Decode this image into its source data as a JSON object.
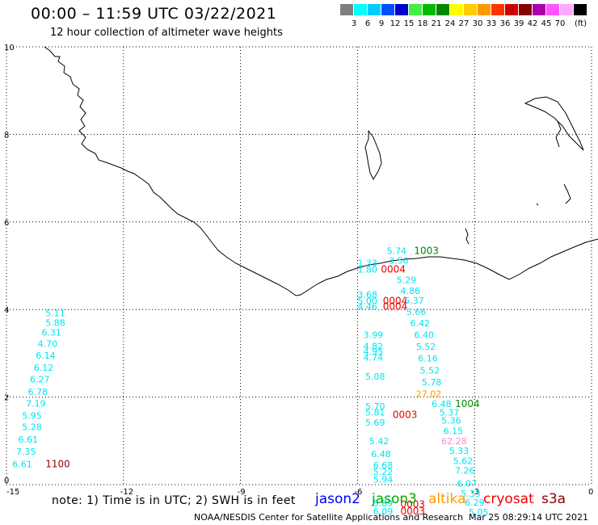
{
  "header": {
    "title": "00:00 – 11:59 UTC 03/22/2021",
    "subtitle": "12 hour collection of altimeter wave heights"
  },
  "legend": {
    "unit": "(ft)",
    "bins": [
      {
        "color": "#7f7f7f",
        "label": ""
      },
      {
        "color": "#00ffff",
        "label": "3"
      },
      {
        "color": "#00ccff",
        "label": "6"
      },
      {
        "color": "#0050ff",
        "label": "9"
      },
      {
        "color": "#0000cc",
        "label": "12"
      },
      {
        "color": "#44ee44",
        "label": "15"
      },
      {
        "color": "#00bb00",
        "label": "18"
      },
      {
        "color": "#008800",
        "label": "21"
      },
      {
        "color": "#ffff00",
        "label": "24"
      },
      {
        "color": "#ffcc00",
        "label": "27"
      },
      {
        "color": "#ff9900",
        "label": "30"
      },
      {
        "color": "#ff3300",
        "label": "33"
      },
      {
        "color": "#cc0000",
        "label": "36"
      },
      {
        "color": "#880000",
        "label": "39"
      },
      {
        "color": "#aa00aa",
        "label": "42"
      },
      {
        "color": "#ff55ff",
        "label": "45"
      },
      {
        "color": "#ffaaff",
        "label": "70"
      },
      {
        "color": "#000000",
        "label": ""
      }
    ]
  },
  "map": {
    "x_ticks": [
      "-15",
      "-12",
      "-9",
      "-6",
      "-3",
      "0"
    ],
    "y_ticks": [
      "0",
      "2",
      "4",
      "6",
      "8",
      "10"
    ],
    "colors": {
      "cyan": "#00e5ee",
      "red": "#ee0000",
      "green": "#008800",
      "orange": "#ff9900",
      "pink": "#ff88dd",
      "darkred": "#990000"
    },
    "observations": [
      {
        "text": "5.11",
        "x": -14.0,
        "y": 3.85,
        "c": "cyan"
      },
      {
        "text": "5.88",
        "x": -14.0,
        "y": 3.63,
        "c": "cyan"
      },
      {
        "text": "6.31",
        "x": -14.1,
        "y": 3.4,
        "c": "cyan"
      },
      {
        "text": "4.70",
        "x": -14.2,
        "y": 3.15,
        "c": "cyan"
      },
      {
        "text": "6.14",
        "x": -14.25,
        "y": 2.88,
        "c": "cyan"
      },
      {
        "text": "6.12",
        "x": -14.3,
        "y": 2.6,
        "c": "cyan"
      },
      {
        "text": "6.27",
        "x": -14.4,
        "y": 2.33,
        "c": "cyan"
      },
      {
        "text": "6.78",
        "x": -14.45,
        "y": 2.05,
        "c": "cyan"
      },
      {
        "text": "7.19",
        "x": -14.5,
        "y": 1.78,
        "c": "cyan"
      },
      {
        "text": "5.95",
        "x": -14.6,
        "y": 1.5,
        "c": "cyan"
      },
      {
        "text": "5.28",
        "x": -14.6,
        "y": 1.25,
        "c": "cyan"
      },
      {
        "text": "6.61",
        "x": -14.7,
        "y": 0.96,
        "c": "cyan"
      },
      {
        "text": "7.35",
        "x": -14.75,
        "y": 0.68,
        "c": "cyan"
      },
      {
        "text": "6.61",
        "x": -14.85,
        "y": 0.4,
        "c": "cyan"
      },
      {
        "text": "1100",
        "x": -14.0,
        "y": 0.4,
        "c": "darkred"
      },
      {
        "text": "5.74",
        "x": -5.25,
        "y": 5.27,
        "c": "cyan"
      },
      {
        "text": "3.56",
        "x": -5.2,
        "y": 5.05,
        "c": "cyan"
      },
      {
        "text": "1003",
        "x": -4.55,
        "y": 5.27,
        "c": "green"
      },
      {
        "text": "1.33",
        "x": -6.0,
        "y": 4.99,
        "c": "cyan"
      },
      {
        "text": "1.80",
        "x": -6.0,
        "y": 4.84,
        "c": "cyan"
      },
      {
        "text": "0004",
        "x": -5.4,
        "y": 4.84,
        "c": "red"
      },
      {
        "text": "5.29",
        "x": -5.0,
        "y": 4.6,
        "c": "cyan"
      },
      {
        "text": "4.86",
        "x": -4.9,
        "y": 4.35,
        "c": "cyan"
      },
      {
        "text": "3.68",
        "x": -6.0,
        "y": 4.27,
        "c": "cyan"
      },
      {
        "text": "5.00",
        "x": -6.0,
        "y": 4.12,
        "c": "cyan"
      },
      {
        "text": "4.46",
        "x": -6.0,
        "y": 3.99,
        "c": "cyan"
      },
      {
        "text": "0004",
        "x": -5.35,
        "y": 4.12,
        "c": "red"
      },
      {
        "text": "0004",
        "x": -5.35,
        "y": 3.99,
        "c": "red"
      },
      {
        "text": "5.37",
        "x": -4.8,
        "y": 4.13,
        "c": "cyan"
      },
      {
        "text": "5.66",
        "x": -4.75,
        "y": 3.87,
        "c": "cyan"
      },
      {
        "text": "6.42",
        "x": -4.65,
        "y": 3.62,
        "c": "cyan"
      },
      {
        "text": "6.40",
        "x": -4.55,
        "y": 3.35,
        "c": "cyan"
      },
      {
        "text": "3.99",
        "x": -5.85,
        "y": 3.35,
        "c": "cyan"
      },
      {
        "text": "4.82",
        "x": -5.85,
        "y": 3.09,
        "c": "cyan"
      },
      {
        "text": "4.95",
        "x": -5.85,
        "y": 2.97,
        "c": "cyan"
      },
      {
        "text": "4.74",
        "x": -5.85,
        "y": 2.83,
        "c": "cyan"
      },
      {
        "text": "5.52",
        "x": -4.5,
        "y": 3.08,
        "c": "cyan"
      },
      {
        "text": "6.16",
        "x": -4.45,
        "y": 2.81,
        "c": "cyan"
      },
      {
        "text": "5.52",
        "x": -4.4,
        "y": 2.54,
        "c": "cyan"
      },
      {
        "text": "5.08",
        "x": -5.8,
        "y": 2.4,
        "c": "cyan"
      },
      {
        "text": "5.78",
        "x": -4.35,
        "y": 2.27,
        "c": "cyan"
      },
      {
        "text": "27.02",
        "x": -4.5,
        "y": 2.0,
        "c": "orange"
      },
      {
        "text": "6.48",
        "x": -4.1,
        "y": 1.77,
        "c": "cyan"
      },
      {
        "text": "1004",
        "x": -3.5,
        "y": 1.77,
        "c": "green"
      },
      {
        "text": "5.70",
        "x": -5.8,
        "y": 1.72,
        "c": "cyan"
      },
      {
        "text": "5.81",
        "x": -5.8,
        "y": 1.58,
        "c": "cyan"
      },
      {
        "text": "5.69",
        "x": -5.8,
        "y": 1.35,
        "c": "cyan"
      },
      {
        "text": "0003",
        "x": -5.1,
        "y": 1.52,
        "c": "red"
      },
      {
        "text": "5.37",
        "x": -3.9,
        "y": 1.58,
        "c": "cyan"
      },
      {
        "text": "5.36",
        "x": -3.85,
        "y": 1.39,
        "c": "cyan"
      },
      {
        "text": "6.15",
        "x": -3.8,
        "y": 1.15,
        "c": "cyan"
      },
      {
        "text": "62.28",
        "x": -3.85,
        "y": 0.92,
        "c": "pink"
      },
      {
        "text": "5.42",
        "x": -5.7,
        "y": 0.92,
        "c": "cyan"
      },
      {
        "text": "5.33",
        "x": -3.65,
        "y": 0.7,
        "c": "cyan"
      },
      {
        "text": "6.48",
        "x": -5.65,
        "y": 0.63,
        "c": "cyan"
      },
      {
        "text": "5.62",
        "x": -3.55,
        "y": 0.47,
        "c": "cyan"
      },
      {
        "text": "6.68",
        "x": -5.6,
        "y": 0.37,
        "c": "cyan"
      },
      {
        "text": "5.22",
        "x": -5.6,
        "y": 0.22,
        "c": "cyan"
      },
      {
        "text": "7.26",
        "x": -3.5,
        "y": 0.25,
        "c": "cyan"
      },
      {
        "text": "5.94",
        "x": -5.6,
        "y": 0.05,
        "c": "cyan"
      },
      {
        "text": "6.07",
        "x": -3.45,
        "y": -0.05,
        "c": "cyan"
      },
      {
        "text": "5.33",
        "x": -3.35,
        "y": -0.28,
        "c": "cyan"
      },
      {
        "text": "5.89",
        "x": -5.6,
        "y": -0.5,
        "c": "cyan"
      },
      {
        "text": "6.09",
        "x": -5.6,
        "y": -0.68,
        "c": "cyan"
      },
      {
        "text": "0003",
        "x": -4.9,
        "y": -0.53,
        "c": "red"
      },
      {
        "text": "0003",
        "x": -4.9,
        "y": -0.68,
        "c": "red"
      },
      {
        "text": "6.29",
        "x": -3.25,
        "y": -0.48,
        "c": "cyan"
      },
      {
        "text": "5.05",
        "x": -3.15,
        "y": -0.7,
        "c": "cyan"
      }
    ]
  },
  "footer": {
    "note": "note: 1) Time is in UTC; 2) SWH is in feet",
    "satellites": [
      {
        "name": "jason2",
        "color": "#0000ff"
      },
      {
        "name": "jason3",
        "color": "#00aa00"
      },
      {
        "name": "altika",
        "color": "#ff9900"
      },
      {
        "name": "cryosat",
        "color": "#ee0000"
      },
      {
        "name": "s3a",
        "color": "#880000"
      }
    ],
    "credit": "NOAA/NESDIS Center for Satellite Applications and Research",
    "timestamp": "Mar 25 08:29:14 UTC 2021"
  }
}
